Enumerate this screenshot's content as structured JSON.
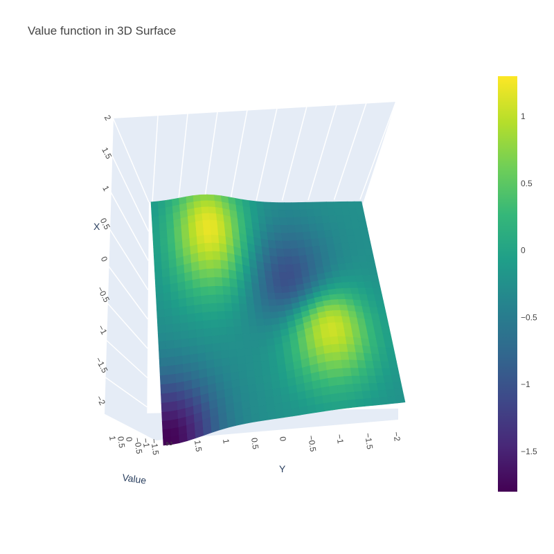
{
  "chart_data": {
    "type": "surface",
    "title": "Value function in 3D Surface",
    "colorscale": "Viridis",
    "colorscale_stops": [
      "#440154",
      "#482878",
      "#3e4989",
      "#31688e",
      "#26828e",
      "#1f9e89",
      "#35b779",
      "#6ece58",
      "#b5de2b",
      "#fde725"
    ],
    "scene_background": "#e5ecf6",
    "x_axis": {
      "title": "X",
      "range": [
        -2.1,
        2.0
      ],
      "ticks": [
        "2",
        "1.5",
        "1",
        "0.5",
        "0",
        "−0.5",
        "−1",
        "−1.5",
        "−2"
      ]
    },
    "y_axis": {
      "title": "Y",
      "range": [
        -2.1,
        2.1
      ],
      "ticks": [
        "2",
        "1.5",
        "1",
        "0.5",
        "0",
        "−0.5",
        "−1",
        "−1.5",
        "−2"
      ]
    },
    "z_axis": {
      "title": "Value",
      "range": [
        -1.8,
        1.3
      ],
      "ticks": [
        "1",
        "0.5",
        "0",
        "−0.5",
        "−1",
        "−1.5"
      ]
    },
    "colorbar": {
      "range": [
        -1.8,
        1.3
      ],
      "ticks": [
        1,
        0.5,
        0,
        -0.5,
        -1,
        -1.5
      ],
      "tick_labels": [
        "1",
        "0.5",
        "0",
        "−0.5",
        "−1",
        "−1.5"
      ]
    },
    "peaks": [
      {
        "x": 1.3,
        "y": 1.0,
        "value": 1.3
      },
      {
        "x": -0.6,
        "y": -1.0,
        "value": 1.3
      }
    ],
    "troughs": [
      {
        "x": -2.0,
        "y": 2.0,
        "value": -1.8
      },
      {
        "x": 0.5,
        "y": -0.5,
        "value": -1.3
      }
    ]
  }
}
